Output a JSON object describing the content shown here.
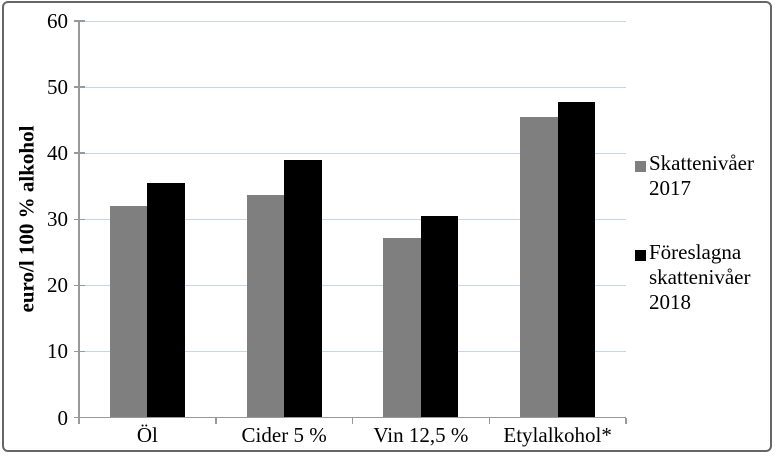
{
  "chart_data": {
    "type": "bar",
    "title": "",
    "categories": [
      "Öl",
      "Cider 5 %",
      "Vin 12,5 %",
      "Etylalkohol*"
    ],
    "series": [
      {
        "name": "Skattenivåer 2017",
        "values": [
          32,
          33.7,
          27.1,
          45.5
        ],
        "color": "#7f7f7f"
      },
      {
        "name": "Föreslagna skattenivåer 2018",
        "values": [
          35.5,
          39,
          30.5,
          47.8
        ],
        "color": "#000000"
      }
    ],
    "xlabel": "",
    "ylabel": "euro/l 100 % alkohol",
    "ylim": [
      0,
      60
    ],
    "ytick_step": 10,
    "grid": true,
    "legend_position": "right"
  },
  "legend": {
    "entries": [
      {
        "label": "Skattenivåer\n2017",
        "color": "#7f7f7f"
      },
      {
        "label": "Föreslagna\nskattenivåer\n2018",
        "color": "#000000"
      }
    ]
  },
  "colors": {
    "background": "#ffffff",
    "frame_border": "#666666",
    "gridline": "#c3d6ec",
    "axis": "#999999",
    "text": "#000000"
  }
}
